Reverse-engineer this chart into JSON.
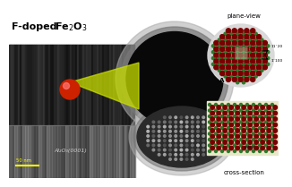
{
  "bg_color": "#ffffff",
  "title_text1": "F-doped  ",
  "title_text2": "Fe",
  "title_sub2": "2",
  "title_text3": "O",
  "title_sub3": "3",
  "scale_bar_label": "50 nm",
  "al2o3_label": "Al₂O₃(0001)",
  "plane_view_label": "plane-view",
  "cross_section_label": "cross-section",
  "label_A": "A",
  "miller1": "11¯20",
  "miller2": "1¯100",
  "atom_dark_red": "#7a0000",
  "atom_green": "#2d7a2d",
  "atom_bright_red": "#cc2200",
  "plane_bg": "#d8d8d8",
  "cs_bg": "#e8e8c8",
  "tem_dark": "#111111",
  "tem_mid": "#444444",
  "tem_light": "#888888",
  "yellow_green": "#c8dd00",
  "scale_color": "#ffff00",
  "circle_halo": "#aaaaaa",
  "circle_halo2": "#777777"
}
